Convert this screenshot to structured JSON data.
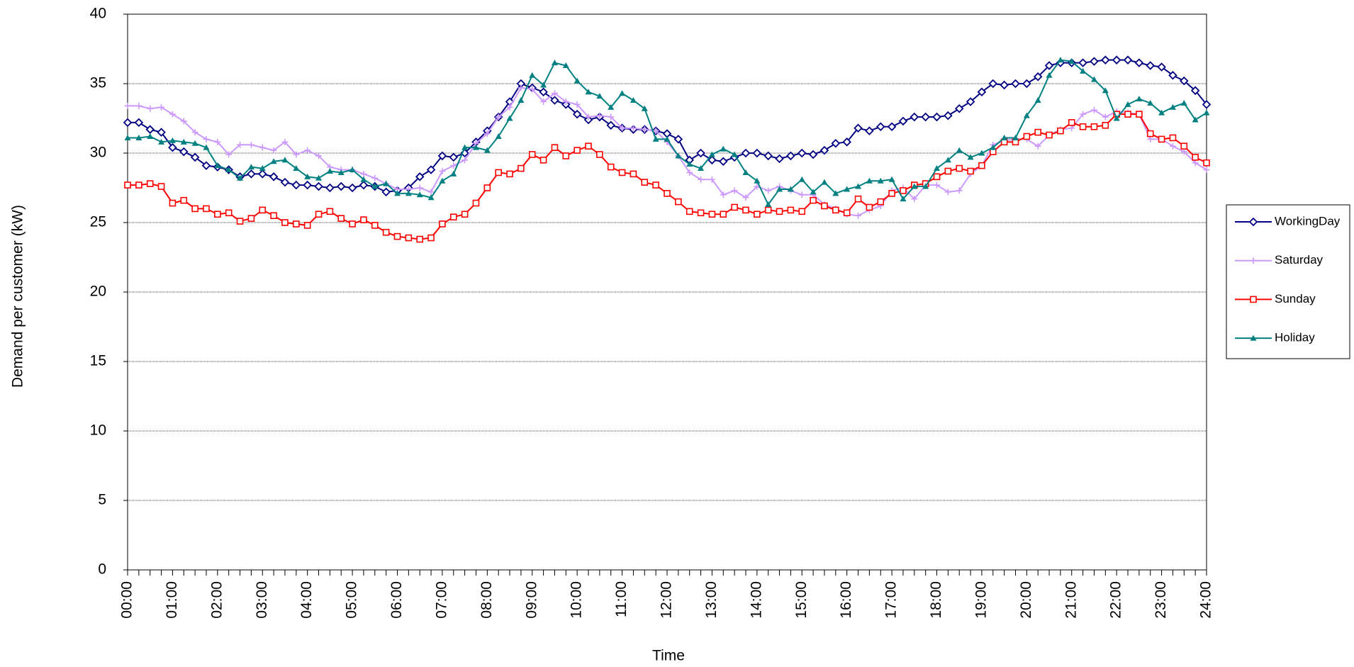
{
  "chart_data": {
    "type": "line",
    "x_label": "Time",
    "y_label": "Demand per customer (kW)",
    "categories": [
      "00:00",
      null,
      null,
      null,
      "01:00",
      null,
      null,
      null,
      "02:00",
      null,
      null,
      null,
      "03:00",
      null,
      null,
      null,
      "04:00",
      null,
      null,
      null,
      "05:00",
      null,
      null,
      null,
      "06:00",
      null,
      null,
      null,
      "07:00",
      null,
      null,
      null,
      "08:00",
      null,
      null,
      null,
      "09:00",
      null,
      null,
      null,
      "10:00",
      null,
      null,
      null,
      "11:00",
      null,
      null,
      null,
      "12:00",
      null,
      null,
      null,
      "13:00",
      null,
      null,
      null,
      "14:00",
      null,
      null,
      null,
      "15:00",
      null,
      null,
      null,
      "16:00",
      null,
      null,
      null,
      "17:00",
      null,
      null,
      null,
      "18:00",
      null,
      null,
      null,
      "19:00",
      null,
      null,
      null,
      "20:00",
      null,
      null,
      null,
      "21:00",
      null,
      null,
      null,
      "22:00",
      null,
      null,
      null,
      "23:00",
      null,
      null,
      null,
      "24:00"
    ],
    "ylim": [
      0,
      40
    ],
    "yticks": [
      0,
      5,
      10,
      15,
      20,
      25,
      30,
      35,
      40
    ],
    "grid": true,
    "legend": "right",
    "series": [
      {
        "name": "WorkingDay",
        "color": "#000080",
        "marker": "diamond",
        "values": [
          32.2,
          32.2,
          31.7,
          31.5,
          30.4,
          30.1,
          29.7,
          29.1,
          29.0,
          28.8,
          28.3,
          28.5,
          28.5,
          28.3,
          27.9,
          27.7,
          27.7,
          27.6,
          27.5,
          27.6,
          27.5,
          27.7,
          27.6,
          27.2,
          27.3,
          27.5,
          28.3,
          28.8,
          29.8,
          29.7,
          30.0,
          30.8,
          31.6,
          32.6,
          33.7,
          35.0,
          34.7,
          34.4,
          33.8,
          33.5,
          32.8,
          32.4,
          32.6,
          32.0,
          31.8,
          31.7,
          31.7,
          31.6,
          31.4,
          31.0,
          29.5,
          30.0,
          29.5,
          29.4,
          29.7,
          30.0,
          30.0,
          29.8,
          29.6,
          29.8,
          30.0,
          29.9,
          30.2,
          30.7,
          30.8,
          31.8,
          31.6,
          31.9,
          31.9,
          32.3,
          32.6,
          32.6,
          32.6,
          32.7,
          33.2,
          33.7,
          34.4,
          35.0,
          34.9,
          35.0,
          35.0,
          35.5,
          36.3,
          36.5,
          36.5,
          36.5,
          36.6,
          36.7,
          36.7,
          36.7,
          36.5,
          36.3,
          36.2,
          35.6,
          35.2,
          34.5,
          33.5
        ]
      },
      {
        "name": "Saturday",
        "color": "#cc99ff",
        "marker": "plus",
        "values": [
          33.4,
          33.4,
          33.2,
          33.3,
          32.8,
          32.3,
          31.5,
          31.0,
          30.8,
          29.9,
          30.6,
          30.6,
          30.4,
          30.2,
          30.8,
          29.9,
          30.2,
          29.8,
          29.0,
          28.8,
          28.8,
          28.5,
          28.2,
          27.8,
          27.4,
          27.4,
          27.5,
          27.2,
          28.7,
          29.1,
          29.5,
          30.7,
          31.4,
          32.6,
          33.3,
          34.7,
          34.6,
          33.7,
          34.3,
          33.7,
          33.5,
          32.6,
          32.7,
          32.6,
          31.8,
          31.8,
          31.7,
          31.6,
          30.8,
          29.8,
          28.6,
          28.1,
          28.1,
          27.0,
          27.3,
          26.8,
          27.6,
          27.3,
          27.6,
          27.3,
          27.0,
          27.0,
          26.3,
          26.0,
          25.6,
          25.5,
          25.9,
          26.2,
          27.3,
          27.5,
          26.7,
          27.7,
          27.7,
          27.2,
          27.3,
          28.5,
          29.1,
          30.6,
          30.9,
          31.0,
          31.0,
          30.5,
          31.3,
          31.7,
          31.8,
          32.8,
          33.1,
          32.6,
          33.0,
          32.9,
          32.8,
          31.0,
          31.0,
          30.5,
          30.1,
          29.3,
          28.8
        ]
      },
      {
        "name": "Sunday",
        "color": "#ff0000",
        "marker": "square",
        "values": [
          27.7,
          27.7,
          27.8,
          27.6,
          26.4,
          26.6,
          26.0,
          26.0,
          25.6,
          25.7,
          25.1,
          25.3,
          25.9,
          25.5,
          25.0,
          24.9,
          24.8,
          25.6,
          25.8,
          25.3,
          24.9,
          25.2,
          24.8,
          24.3,
          24.0,
          23.9,
          23.8,
          23.9,
          24.9,
          25.4,
          25.6,
          26.4,
          27.5,
          28.6,
          28.5,
          28.9,
          29.9,
          29.5,
          30.4,
          29.8,
          30.2,
          30.5,
          29.9,
          29.0,
          28.6,
          28.5,
          27.9,
          27.7,
          27.1,
          26.5,
          25.8,
          25.7,
          25.6,
          25.6,
          26.1,
          25.9,
          25.6,
          25.9,
          25.8,
          25.9,
          25.8,
          26.6,
          26.2,
          25.9,
          25.7,
          26.7,
          26.1,
          26.5,
          27.1,
          27.3,
          27.7,
          27.8,
          28.3,
          28.7,
          28.9,
          28.7,
          29.1,
          30.1,
          30.8,
          30.8,
          31.2,
          31.5,
          31.3,
          31.6,
          32.2,
          31.9,
          31.9,
          32.0,
          32.8,
          32.8,
          32.8,
          31.4,
          31.0,
          31.1,
          30.5,
          29.7,
          29.3
        ]
      },
      {
        "name": "Holiday",
        "color": "#008080",
        "marker": "triangle",
        "values": [
          31.1,
          31.1,
          31.2,
          30.8,
          30.9,
          30.8,
          30.7,
          30.4,
          29.1,
          28.8,
          28.2,
          29.0,
          28.9,
          29.4,
          29.5,
          28.9,
          28.3,
          28.2,
          28.7,
          28.6,
          28.8,
          28.1,
          27.6,
          27.8,
          27.1,
          27.1,
          27.0,
          26.8,
          28.0,
          28.5,
          30.4,
          30.4,
          30.2,
          31.2,
          32.5,
          33.8,
          35.6,
          34.9,
          36.5,
          36.3,
          35.2,
          34.4,
          34.1,
          33.3,
          34.3,
          33.8,
          33.2,
          31.0,
          31.0,
          29.8,
          29.2,
          28.9,
          29.9,
          30.3,
          29.9,
          28.6,
          28.0,
          26.3,
          27.4,
          27.4,
          28.1,
          27.2,
          27.9,
          27.1,
          27.4,
          27.6,
          28.0,
          28.0,
          28.1,
          26.7,
          27.6,
          27.6,
          28.9,
          29.5,
          30.2,
          29.7,
          30.0,
          30.4,
          31.1,
          31.1,
          32.7,
          33.8,
          35.6,
          36.7,
          36.6,
          35.9,
          35.3,
          34.5,
          32.5,
          33.5,
          33.9,
          33.6,
          32.9,
          33.3,
          33.6,
          32.4,
          32.9
        ]
      }
    ]
  }
}
